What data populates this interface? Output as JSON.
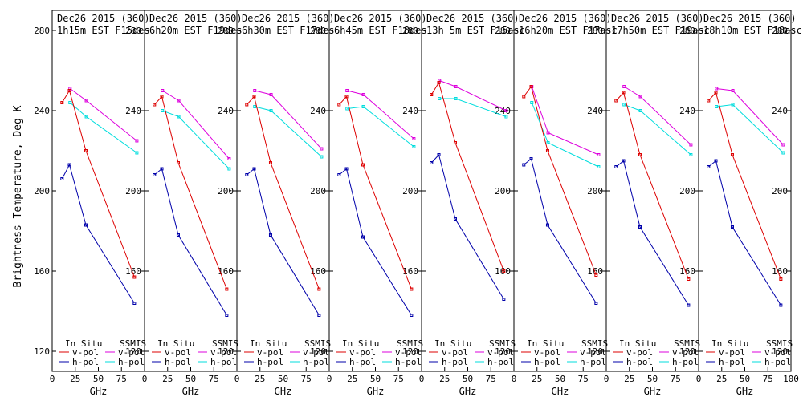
{
  "chart_data": {
    "type": "line",
    "ylabel": "Brightness Temperature, Deg K",
    "xlabel": "GHz",
    "xlim": [
      0,
      100
    ],
    "ylim": [
      110,
      290
    ],
    "x_ticks": [
      0,
      25,
      50,
      75
    ],
    "x_ticks_last_panel": [
      0,
      25,
      50,
      75,
      100
    ],
    "y_ticks": [
      120,
      160,
      200,
      240,
      280
    ],
    "legend": {
      "in_situ_label": "In Situ",
      "ssmis_label": "SSMIS",
      "vpol_label": "v-pol",
      "hpol_label": "h-pol"
    },
    "colors": {
      "in_situ_v": "#dd0000",
      "in_situ_h": "#0000aa",
      "ssmis_v": "#dd00dd",
      "ssmis_h": "#00dddd"
    },
    "panels": [
      {
        "title1": "Dec26 2015 (360)",
        "title2": "1h15m EST F15des",
        "insitu_x": [
          10.7,
          18.7,
          36.5,
          89
        ],
        "insitu_v": [
          244,
          250,
          220,
          157
        ],
        "insitu_h": [
          206,
          213,
          183,
          144
        ],
        "ssmis_x": [
          19.35,
          37,
          91.65
        ],
        "ssmis_v": [
          251,
          245,
          225
        ],
        "ssmis_h": [
          244,
          237,
          219
        ]
      },
      {
        "title1": "Dec26 2015 (360)",
        "title2": "6h20m EST F19des",
        "insitu_x": [
          10.7,
          18.7,
          36.5,
          89
        ],
        "insitu_v": [
          243,
          247,
          214,
          151
        ],
        "insitu_h": [
          208,
          211,
          178,
          138
        ],
        "ssmis_x": [
          19.35,
          37,
          91.65
        ],
        "ssmis_v": [
          250,
          245,
          216
        ],
        "ssmis_h": [
          240,
          237,
          211
        ]
      },
      {
        "title1": "Dec26 2015 (360)",
        "title2": "6h30m EST F17des",
        "insitu_x": [
          10.7,
          18.7,
          36.5,
          89
        ],
        "insitu_v": [
          243,
          247,
          214,
          151
        ],
        "insitu_h": [
          208,
          211,
          178,
          138
        ],
        "ssmis_x": [
          19.35,
          37,
          91.65
        ],
        "ssmis_v": [
          250,
          248,
          221
        ],
        "ssmis_h": [
          242,
          240,
          217
        ]
      },
      {
        "title1": "Dec26 2015 (360)",
        "title2": "6h45m EST F18des",
        "insitu_x": [
          10.7,
          18.7,
          36.5,
          89
        ],
        "insitu_v": [
          243,
          247,
          213,
          151
        ],
        "insitu_h": [
          208,
          211,
          177,
          138
        ],
        "ssmis_x": [
          19.35,
          37,
          91.65
        ],
        "ssmis_v": [
          250,
          248,
          226
        ],
        "ssmis_h": [
          241,
          242,
          222
        ]
      },
      {
        "title1": "Dec26 2015 (360)",
        "title2": "13h 5m EST F15asc",
        "insitu_x": [
          10.7,
          18.7,
          36.5,
          89
        ],
        "insitu_v": [
          248,
          254,
          224,
          160
        ],
        "insitu_h": [
          214,
          218,
          186,
          146
        ],
        "ssmis_x": [
          19.35,
          37,
          91.65
        ],
        "ssmis_v": [
          255,
          252,
          240
        ],
        "ssmis_h": [
          246,
          246,
          237
        ]
      },
      {
        "title1": "Dec26 2015 (360)",
        "title2": "16h20m EST F17asc",
        "insitu_x": [
          10.7,
          18.7,
          36.5,
          89
        ],
        "insitu_v": [
          247,
          252,
          220,
          158
        ],
        "insitu_h": [
          213,
          216,
          183,
          144
        ],
        "ssmis_x": [
          19.35,
          37,
          91.65
        ],
        "ssmis_v": [
          252,
          229,
          218
        ],
        "ssmis_h": [
          244,
          224,
          212
        ]
      },
      {
        "title1": "Dec26 2015 (360)",
        "title2": "17h50m EST F19asc",
        "insitu_x": [
          10.7,
          18.7,
          36.5,
          89
        ],
        "insitu_v": [
          245,
          249,
          218,
          156
        ],
        "insitu_h": [
          212,
          215,
          182,
          143
        ],
        "ssmis_x": [
          19.35,
          37,
          91.65
        ],
        "ssmis_v": [
          252,
          247,
          223
        ],
        "ssmis_h": [
          243,
          240,
          218
        ]
      },
      {
        "title1": "Dec26 2015 (360)",
        "title2": "18h10m EST F18asc",
        "insitu_x": [
          10.7,
          18.7,
          36.5,
          89
        ],
        "insitu_v": [
          245,
          249,
          218,
          156
        ],
        "insitu_h": [
          212,
          215,
          182,
          143
        ],
        "ssmis_x": [
          19.35,
          37,
          91.65
        ],
        "ssmis_v": [
          251,
          250,
          223
        ],
        "ssmis_h": [
          242,
          243,
          219
        ]
      }
    ]
  }
}
